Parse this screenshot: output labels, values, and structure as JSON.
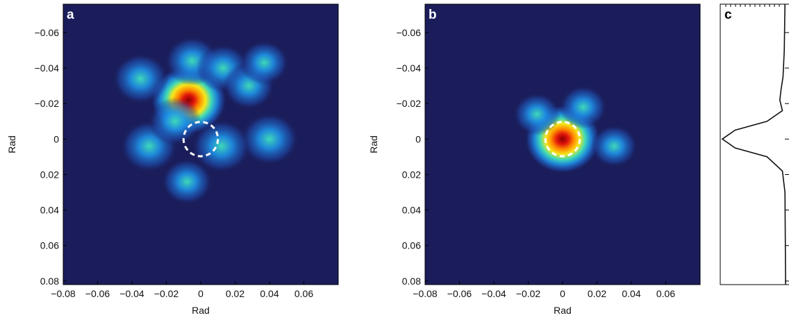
{
  "colors": {
    "background": "#1a1d5a",
    "ring_a": "#ffffff",
    "ring_b": "#ffffff",
    "profile_line": "#111111"
  },
  "chart_data": [
    {
      "panel_label": "a",
      "type": "heatmap",
      "xlabel": "Rad",
      "ylabel": "Rad",
      "xlim": [
        -0.08,
        0.08
      ],
      "ylim": [
        -0.076,
        0.082
      ],
      "y_inverted": true,
      "x_ticks": [
        "−0.08",
        "−0.06",
        "−0.04",
        "−0.02",
        "0",
        "0.02",
        "0.04",
        "0.06"
      ],
      "x_tick_values": [
        -0.08,
        -0.06,
        -0.04,
        -0.02,
        0,
        0.02,
        0.04,
        0.06
      ],
      "y_ticks": [
        "−0.06",
        "−0.04",
        "−0.02",
        "0",
        "0.02",
        "0.04",
        "0.06",
        "0.08"
      ],
      "y_tick_values": [
        -0.06,
        -0.04,
        -0.02,
        0,
        0.02,
        0.04,
        0.06,
        0.08
      ],
      "grid": false,
      "colormap": "jet",
      "peaks": [
        {
          "x": -0.007,
          "y": -0.022,
          "intensity": 1.0
        },
        {
          "x": -0.035,
          "y": -0.034,
          "intensity": 0.35
        },
        {
          "x": -0.005,
          "y": -0.044,
          "intensity": 0.3
        },
        {
          "x": 0.013,
          "y": -0.04,
          "intensity": 0.25
        },
        {
          "x": 0.028,
          "y": -0.03,
          "intensity": 0.22
        },
        {
          "x": 0.04,
          "y": 0.0,
          "intensity": 0.42
        },
        {
          "x": 0.012,
          "y": 0.004,
          "intensity": 0.45
        },
        {
          "x": -0.03,
          "y": 0.004,
          "intensity": 0.4
        },
        {
          "x": -0.015,
          "y": -0.01,
          "intensity": 0.25
        },
        {
          "x": -0.008,
          "y": 0.024,
          "intensity": 0.18
        },
        {
          "x": 0.037,
          "y": -0.043,
          "intensity": 0.12
        }
      ],
      "dashed_circle": {
        "x": 0.0,
        "y": 0.0,
        "radius": 0.01
      }
    },
    {
      "panel_label": "b",
      "type": "heatmap",
      "xlabel": "Rad",
      "ylabel": "Rad",
      "xlim": [
        -0.08,
        0.08
      ],
      "ylim": [
        -0.076,
        0.082
      ],
      "y_inverted": true,
      "x_ticks": [
        "−0.08",
        "−0.06",
        "−0.04",
        "−0.02",
        "0",
        "0.02",
        "0.04",
        "0.06"
      ],
      "x_tick_values": [
        -0.08,
        -0.06,
        -0.04,
        -0.02,
        0,
        0.02,
        0.04,
        0.06
      ],
      "y_ticks": [
        "−0.06",
        "−0.04",
        "−0.02",
        "0",
        "0.02",
        "0.04",
        "0.06",
        "0.08"
      ],
      "y_tick_values": [
        -0.06,
        -0.04,
        -0.02,
        0,
        0.02,
        0.04,
        0.06,
        0.08
      ],
      "grid": false,
      "colormap": "jet",
      "peaks": [
        {
          "x": 0.0,
          "y": 0.0,
          "intensity": 1.0
        },
        {
          "x": 0.012,
          "y": -0.018,
          "intensity": 0.08
        },
        {
          "x": -0.015,
          "y": -0.014,
          "intensity": 0.06
        },
        {
          "x": 0.03,
          "y": 0.004,
          "intensity": 0.05
        }
      ],
      "dashed_circle": {
        "x": 0.0,
        "y": 0.0,
        "radius": 0.01
      }
    },
    {
      "panel_label": "c",
      "type": "line",
      "profile": [
        {
          "y": -0.076,
          "v": 0.02
        },
        {
          "y": -0.05,
          "v": 0.03
        },
        {
          "y": -0.035,
          "v": 0.05
        },
        {
          "y": -0.028,
          "v": 0.08
        },
        {
          "y": -0.022,
          "v": 0.1
        },
        {
          "y": -0.016,
          "v": 0.06
        },
        {
          "y": -0.01,
          "v": 0.3
        },
        {
          "y": -0.005,
          "v": 0.8
        },
        {
          "y": 0.0,
          "v": 1.0
        },
        {
          "y": 0.005,
          "v": 0.8
        },
        {
          "y": 0.01,
          "v": 0.3
        },
        {
          "y": 0.018,
          "v": 0.06
        },
        {
          "y": 0.03,
          "v": 0.02
        },
        {
          "y": 0.082,
          "v": 0.01
        }
      ]
    }
  ]
}
